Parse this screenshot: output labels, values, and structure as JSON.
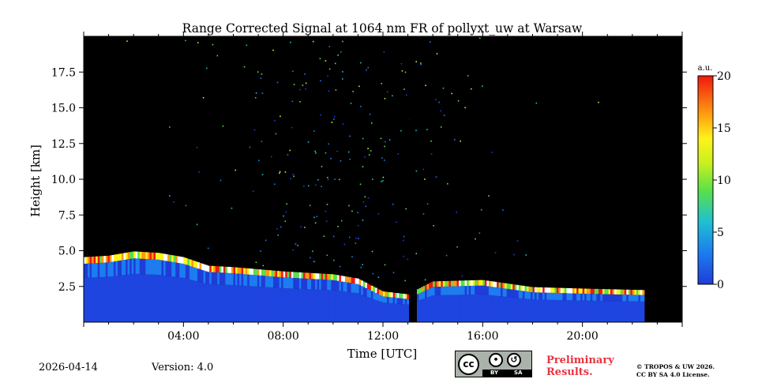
{
  "chart_data": {
    "type": "heatmap",
    "title": "Range Corrected Signal at 1064 nm FR of pollyxt_uw at Warsaw",
    "xlabel": "Time [UTC]",
    "ylabel": "Height [km]",
    "xlim_hours": [
      0,
      24
    ],
    "ylim_km": [
      0,
      20
    ],
    "x_ticks": [
      {
        "value": 4,
        "label": "04:00"
      },
      {
        "value": 8,
        "label": "08:00"
      },
      {
        "value": 12,
        "label": "12:00"
      },
      {
        "value": 16,
        "label": "16:00"
      },
      {
        "value": 20,
        "label": "20:00"
      }
    ],
    "y_ticks": [
      {
        "value": 2.5,
        "label": "2.5"
      },
      {
        "value": 5.0,
        "label": "5.0"
      },
      {
        "value": 7.5,
        "label": "7.5"
      },
      {
        "value": 10.0,
        "label": "10.0"
      },
      {
        "value": 12.5,
        "label": "12.5"
      },
      {
        "value": 15.0,
        "label": "15.0"
      },
      {
        "value": 17.5,
        "label": "17.5"
      }
    ],
    "colorbar": {
      "unit": "a.u.",
      "range": [
        0,
        20
      ],
      "ticks": [
        {
          "value": 0,
          "label": "0"
        },
        {
          "value": 5,
          "label": "5"
        },
        {
          "value": 10,
          "label": "10"
        },
        {
          "value": 15,
          "label": "15"
        },
        {
          "value": 20,
          "label": "20"
        }
      ]
    },
    "boundary_layer_top_km": [
      {
        "t": 0.0,
        "h": 4.3
      },
      {
        "t": 1.0,
        "h": 4.4
      },
      {
        "t": 2.0,
        "h": 4.7
      },
      {
        "t": 3.0,
        "h": 4.6
      },
      {
        "t": 4.0,
        "h": 4.3
      },
      {
        "t": 5.0,
        "h": 3.7
      },
      {
        "t": 6.0,
        "h": 3.6
      },
      {
        "t": 8.0,
        "h": 3.3
      },
      {
        "t": 10.0,
        "h": 3.1
      },
      {
        "t": 11.0,
        "h": 2.8
      },
      {
        "t": 12.0,
        "h": 1.9
      },
      {
        "t": 13.0,
        "h": 1.7
      },
      {
        "t": 14.0,
        "h": 2.6
      },
      {
        "t": 16.0,
        "h": 2.7
      },
      {
        "t": 18.0,
        "h": 2.2
      },
      {
        "t": 20.0,
        "h": 2.1
      },
      {
        "t": 22.4,
        "h": 2.0
      }
    ],
    "data_end_hour": 22.4,
    "gap_hours": [
      13.05,
      13.3
    ]
  },
  "footer": {
    "date": "2026-04-14",
    "version": "Version: 4.0",
    "preliminary_line1": "Preliminary",
    "preliminary_line2": "Results.",
    "copyright_line1": "© TROPOS & UW 2026.",
    "copyright_line2": "CC BY SA 4.0 License.",
    "cc_logo_text": "cc",
    "cc_by": "BY",
    "cc_sa": "SA"
  }
}
